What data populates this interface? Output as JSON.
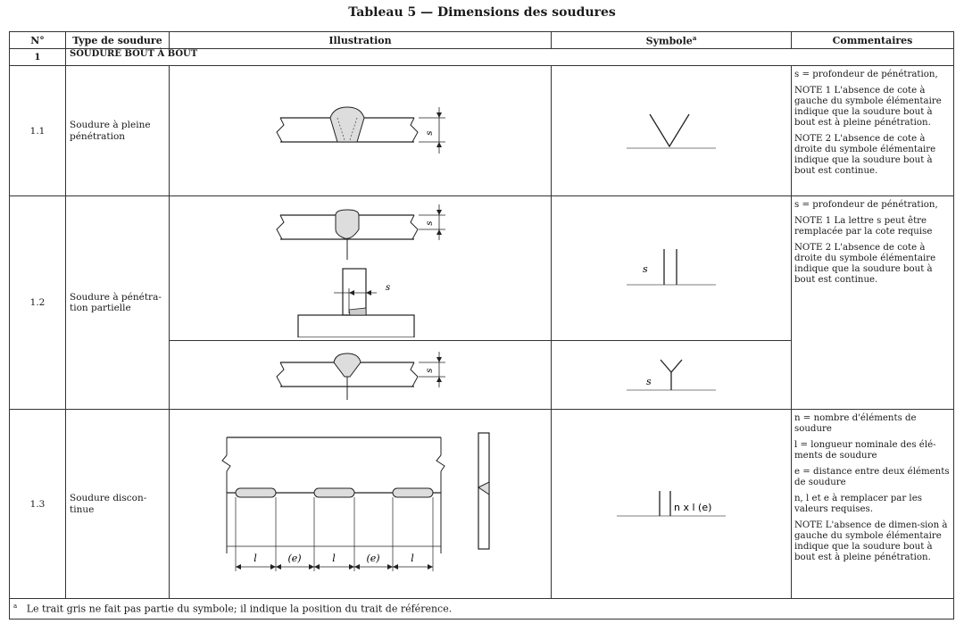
{
  "title": "Tableau 5 — Dimensions des soudures",
  "headers": {
    "num": "N°",
    "type": "Type de soudure",
    "illustration": "Illustration",
    "symbole": "Symbole",
    "symbole_note": "a",
    "commentaires": "Commentaires"
  },
  "section": {
    "num": "1",
    "label": "SOUDURE BOUT À BOUT"
  },
  "rows": [
    {
      "num": "1.1",
      "type": "Soudure à pleine pénétration",
      "comments": [
        "s = profondeur de pénétration,",
        "NOTE 1    L'absence de cote à gauche du symbole élémentaire indique que la soudure bout à bout est à pleine pénétration.",
        "NOTE 2    L'absence de cote à droite du symbole élémentaire indique que la soudure bout à bout est continue."
      ]
    },
    {
      "num": "1.2",
      "type": "Soudure à pénétra-tion partielle",
      "comments": [
        "s = profondeur de pénétration,",
        "NOTE 1    La lettre s peut être remplacée par la cote requise",
        "NOTE 2    L'absence de cote à droite du symbole élémentaire indique que la soudure bout à bout est continue."
      ]
    },
    {
      "num": "1.3",
      "type": "Soudure discon-tinue",
      "comments": [
        "n = nombre d'éléments de soudure",
        "l = longueur nominale des élé-ments de soudure",
        "e = distance entre deux éléments de soudure",
        "n, l et e à remplacer par les valeurs requises.",
        "NOTE        L'absence de dimen-sion à gauche du symbole élémentaire indique que la soudure bout à bout est à pleine pénétration."
      ]
    }
  ],
  "labels": {
    "s": "s",
    "l": "l",
    "e": "(e)",
    "nxl": "n x l (e)"
  },
  "footnote": {
    "mark": "a",
    "text": "Le trait gris ne fait pas partie du symbole; il indique la position du trait de référence."
  }
}
